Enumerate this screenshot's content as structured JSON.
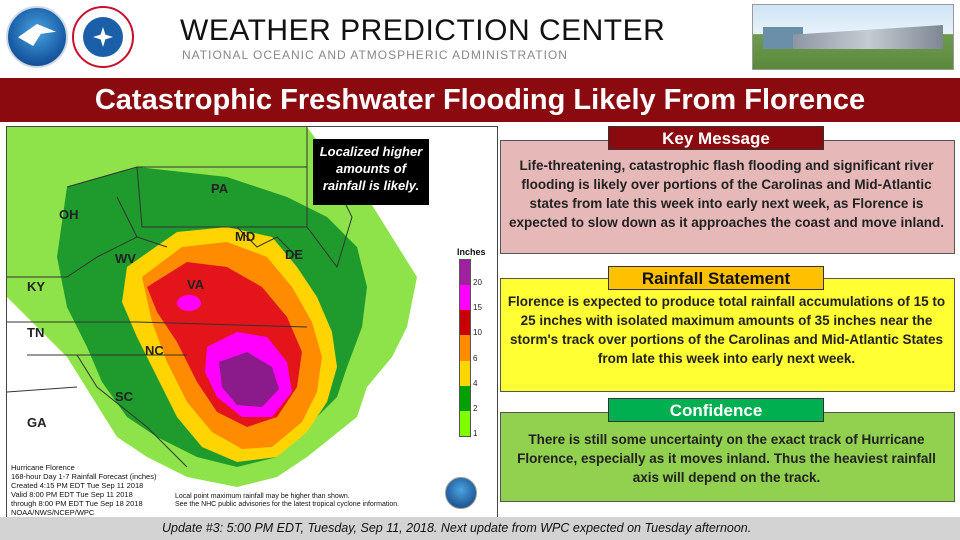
{
  "header": {
    "title": "WEATHER PREDICTION CENTER",
    "subtitle": "NATIONAL OCEANIC AND ATMOSPHERIC ADMINISTRATION"
  },
  "banner": {
    "title": "Catastrophic Freshwater Flooding Likely From Florence"
  },
  "map": {
    "callout": "Localized higher amounts of rainfall is likely.",
    "state_labels": {
      "pa": "PA",
      "oh": "OH",
      "md": "MD",
      "de": "DE",
      "wv": "WV",
      "va": "VA",
      "ky": "KY",
      "tn": "TN",
      "nc": "NC",
      "sc": "SC",
      "ga": "GA"
    },
    "legend": {
      "title": "Inches",
      "ticks": [
        "20",
        "15",
        "10",
        "6",
        "4",
        "2",
        "1"
      ],
      "colors": [
        "#a020a0",
        "#ff00ff",
        "#c80000",
        "#ff8c00",
        "#ffd700",
        "#00a000",
        "#7fff00"
      ]
    },
    "credit": [
      "Hurricane Florence",
      "168-hour Day 1-7 Rainfall Forecast (inches)",
      "Created 4:15 PM EDT Tue Sep 11 2018",
      "Valid 8:00 PM EDT Tue Sep 11 2018",
      "through 8:00 PM EDT Tue Sep 18 2018",
      "NOAA/NWS/NCEP/WPC"
    ],
    "note": [
      "Local point maximum rainfall may be higher than shown.",
      "See the NHC public advisories for the latest tropical cyclone information."
    ]
  },
  "panels": {
    "key_message": {
      "heading": "Key Message",
      "body": "Life-threatening, catastrophic flash flooding and significant river flooding is likely over portions of the Carolinas and Mid-Atlantic states from late this week into early next week, as Florence is expected to slow down as it approaches the coast and move inland.",
      "bg": "#e6b8b7",
      "head_bg": "#8b0a0f"
    },
    "rainfall": {
      "heading": "Rainfall Statement",
      "body": "Florence is expected to produce total rainfall accumulations of 15 to 25 inches with isolated maximum amounts of 35 inches near the storm's track over portions of the Carolinas and Mid-Atlantic States from late this week into early next week.",
      "bg": "#ffff33",
      "head_bg": "#ffc000"
    },
    "confidence": {
      "heading": "Confidence",
      "body": "There is still some uncertainty on the exact track of Hurricane Florence, especially as it moves inland. Thus the heaviest rainfall axis will depend on the track.",
      "bg": "#92d050",
      "head_bg": "#00b050"
    }
  },
  "footer": {
    "text": "Update #3: 5:00 PM EDT, Tuesday, Sep 11, 2018.  Next update from WPC expected on Tuesday afternoon."
  }
}
